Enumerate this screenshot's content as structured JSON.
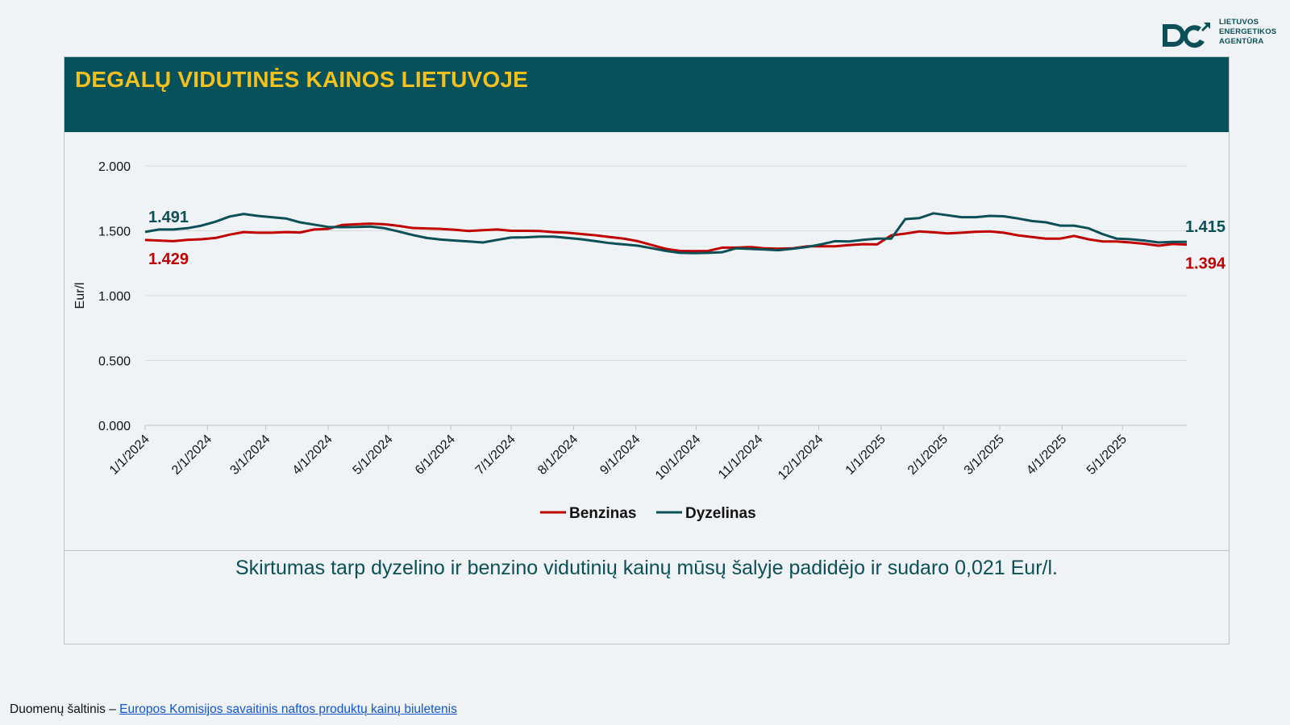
{
  "logo": {
    "line1": "LIETUVOS",
    "line2": "ENERGETIKOS",
    "line3": "AGENTŪRA",
    "color": "#0b4f57"
  },
  "header": {
    "title": "DEGALŲ VIDUTINĖS KAINOS LIETUVOJE",
    "bg_color": "#07525a",
    "title_color": "#f4c01e"
  },
  "note": "Skirtumas tarp dyzelino ir benzino vidutinių kainų mūsų šalyje padidėjo ir sudaro 0,021 Eur/l.",
  "source": {
    "prefix": "Duomenų šaltinis – ",
    "link_text": "Europos Komisijos savaitinis naftos produktų kainų biuletenis"
  },
  "chart_data": {
    "type": "line",
    "ylabel": "Eur/l",
    "xlabel": "",
    "ylim": [
      0,
      2.0
    ],
    "y_ticks": [
      "0.000",
      "0.500",
      "1.000",
      "1.500",
      "2.000"
    ],
    "y_tick_values": [
      0,
      0.5,
      1.0,
      1.5,
      2.0
    ],
    "x_range": [
      "2024-01-01",
      "2025-06-02"
    ],
    "x_ticks": [
      "1/1/2024",
      "2/1/2024",
      "3/1/2024",
      "4/1/2024",
      "5/1/2024",
      "6/1/2024",
      "7/1/2024",
      "8/1/2024",
      "9/1/2024",
      "10/1/2024",
      "11/1/2024",
      "12/1/2024",
      "1/1/2025",
      "2/1/2025",
      "3/1/2025",
      "4/1/2025",
      "5/1/2025"
    ],
    "x_tick_dates": [
      "2024-01-01",
      "2024-02-01",
      "2024-03-01",
      "2024-04-01",
      "2024-05-01",
      "2024-06-01",
      "2024-07-01",
      "2024-08-01",
      "2024-09-01",
      "2024-10-01",
      "2024-11-01",
      "2024-12-01",
      "2025-01-01",
      "2025-02-01",
      "2025-03-01",
      "2025-04-01",
      "2025-05-01"
    ],
    "grid": true,
    "legend_position": "bottom",
    "series": [
      {
        "name": "Benzinas",
        "color": "#c00000",
        "end_label": "1.394",
        "start_label": "1.429",
        "points": [
          [
            "2024-01-01",
            1.429
          ],
          [
            "2024-01-08",
            1.425
          ],
          [
            "2024-01-15",
            1.42
          ],
          [
            "2024-01-22",
            1.43
          ],
          [
            "2024-01-29",
            1.435
          ],
          [
            "2024-02-05",
            1.445
          ],
          [
            "2024-02-12",
            1.47
          ],
          [
            "2024-02-19",
            1.49
          ],
          [
            "2024-02-26",
            1.485
          ],
          [
            "2024-03-04",
            1.485
          ],
          [
            "2024-03-11",
            1.49
          ],
          [
            "2024-03-18",
            1.487
          ],
          [
            "2024-03-25",
            1.51
          ],
          [
            "2024-04-01",
            1.515
          ],
          [
            "2024-04-08",
            1.545
          ],
          [
            "2024-04-15",
            1.55
          ],
          [
            "2024-04-22",
            1.555
          ],
          [
            "2024-04-29",
            1.55
          ],
          [
            "2024-05-06",
            1.538
          ],
          [
            "2024-05-13",
            1.522
          ],
          [
            "2024-05-20",
            1.518
          ],
          [
            "2024-05-27",
            1.515
          ],
          [
            "2024-06-03",
            1.508
          ],
          [
            "2024-06-10",
            1.498
          ],
          [
            "2024-06-17",
            1.505
          ],
          [
            "2024-06-24",
            1.51
          ],
          [
            "2024-07-01",
            1.5
          ],
          [
            "2024-07-08",
            1.5
          ],
          [
            "2024-07-15",
            1.498
          ],
          [
            "2024-07-22",
            1.49
          ],
          [
            "2024-07-29",
            1.485
          ],
          [
            "2024-08-05",
            1.475
          ],
          [
            "2024-08-12",
            1.465
          ],
          [
            "2024-08-19",
            1.452
          ],
          [
            "2024-08-26",
            1.44
          ],
          [
            "2024-09-02",
            1.42
          ],
          [
            "2024-09-09",
            1.39
          ],
          [
            "2024-09-16",
            1.36
          ],
          [
            "2024-09-23",
            1.345
          ],
          [
            "2024-09-30",
            1.343
          ],
          [
            "2024-10-07",
            1.345
          ],
          [
            "2024-10-14",
            1.37
          ],
          [
            "2024-10-21",
            1.37
          ],
          [
            "2024-10-28",
            1.375
          ],
          [
            "2024-11-04",
            1.365
          ],
          [
            "2024-11-11",
            1.362
          ],
          [
            "2024-11-18",
            1.365
          ],
          [
            "2024-11-25",
            1.38
          ],
          [
            "2024-12-02",
            1.38
          ],
          [
            "2024-12-09",
            1.38
          ],
          [
            "2024-12-16",
            1.39
          ],
          [
            "2024-12-23",
            1.397
          ],
          [
            "2024-12-30",
            1.395
          ],
          [
            "2025-01-06",
            1.465
          ],
          [
            "2025-01-13",
            1.478
          ],
          [
            "2025-01-20",
            1.495
          ],
          [
            "2025-01-27",
            1.488
          ],
          [
            "2025-02-03",
            1.48
          ],
          [
            "2025-02-10",
            1.485
          ],
          [
            "2025-02-17",
            1.492
          ],
          [
            "2025-02-24",
            1.495
          ],
          [
            "2025-03-03",
            1.485
          ],
          [
            "2025-03-10",
            1.465
          ],
          [
            "2025-03-17",
            1.452
          ],
          [
            "2025-03-24",
            1.44
          ],
          [
            "2025-03-31",
            1.44
          ],
          [
            "2025-04-07",
            1.46
          ],
          [
            "2025-04-14",
            1.435
          ],
          [
            "2025-04-21",
            1.418
          ],
          [
            "2025-04-28",
            1.418
          ],
          [
            "2025-05-05",
            1.41
          ],
          [
            "2025-05-12",
            1.4
          ],
          [
            "2025-05-19",
            1.385
          ],
          [
            "2025-05-26",
            1.398
          ],
          [
            "2025-06-02",
            1.394
          ]
        ]
      },
      {
        "name": "Dyzelinas",
        "color": "#0b4f57",
        "end_label": "1.415",
        "start_label": "1.491",
        "points": [
          [
            "2024-01-01",
            1.491
          ],
          [
            "2024-01-08",
            1.51
          ],
          [
            "2024-01-15",
            1.51
          ],
          [
            "2024-01-22",
            1.52
          ],
          [
            "2024-01-29",
            1.54
          ],
          [
            "2024-02-05",
            1.57
          ],
          [
            "2024-02-12",
            1.61
          ],
          [
            "2024-02-19",
            1.63
          ],
          [
            "2024-02-26",
            1.615
          ],
          [
            "2024-03-04",
            1.605
          ],
          [
            "2024-03-11",
            1.595
          ],
          [
            "2024-03-18",
            1.565
          ],
          [
            "2024-03-25",
            1.548
          ],
          [
            "2024-04-01",
            1.53
          ],
          [
            "2024-04-08",
            1.528
          ],
          [
            "2024-04-15",
            1.53
          ],
          [
            "2024-04-22",
            1.532
          ],
          [
            "2024-04-29",
            1.52
          ],
          [
            "2024-05-06",
            1.495
          ],
          [
            "2024-05-13",
            1.468
          ],
          [
            "2024-05-20",
            1.445
          ],
          [
            "2024-05-27",
            1.432
          ],
          [
            "2024-06-03",
            1.425
          ],
          [
            "2024-06-10",
            1.418
          ],
          [
            "2024-06-17",
            1.41
          ],
          [
            "2024-06-24",
            1.43
          ],
          [
            "2024-07-01",
            1.448
          ],
          [
            "2024-07-08",
            1.45
          ],
          [
            "2024-07-15",
            1.455
          ],
          [
            "2024-07-22",
            1.455
          ],
          [
            "2024-07-29",
            1.445
          ],
          [
            "2024-08-05",
            1.435
          ],
          [
            "2024-08-12",
            1.42
          ],
          [
            "2024-08-19",
            1.405
          ],
          [
            "2024-08-26",
            1.395
          ],
          [
            "2024-09-02",
            1.385
          ],
          [
            "2024-09-09",
            1.365
          ],
          [
            "2024-09-16",
            1.345
          ],
          [
            "2024-09-23",
            1.33
          ],
          [
            "2024-09-30",
            1.328
          ],
          [
            "2024-10-07",
            1.33
          ],
          [
            "2024-10-14",
            1.335
          ],
          [
            "2024-10-21",
            1.365
          ],
          [
            "2024-10-28",
            1.36
          ],
          [
            "2024-11-04",
            1.355
          ],
          [
            "2024-11-11",
            1.35
          ],
          [
            "2024-11-18",
            1.362
          ],
          [
            "2024-11-25",
            1.375
          ],
          [
            "2024-12-02",
            1.395
          ],
          [
            "2024-12-09",
            1.42
          ],
          [
            "2024-12-16",
            1.418
          ],
          [
            "2024-12-23",
            1.43
          ],
          [
            "2024-12-30",
            1.44
          ],
          [
            "2025-01-06",
            1.44
          ],
          [
            "2025-01-13",
            1.59
          ],
          [
            "2025-01-20",
            1.598
          ],
          [
            "2025-01-27",
            1.635
          ],
          [
            "2025-02-03",
            1.62
          ],
          [
            "2025-02-10",
            1.605
          ],
          [
            "2025-02-17",
            1.605
          ],
          [
            "2025-02-24",
            1.615
          ],
          [
            "2025-03-03",
            1.612
          ],
          [
            "2025-03-10",
            1.595
          ],
          [
            "2025-03-17",
            1.575
          ],
          [
            "2025-03-24",
            1.565
          ],
          [
            "2025-03-31",
            1.54
          ],
          [
            "2025-04-07",
            1.54
          ],
          [
            "2025-04-14",
            1.52
          ],
          [
            "2025-04-21",
            1.475
          ],
          [
            "2025-04-28",
            1.44
          ],
          [
            "2025-05-05",
            1.435
          ],
          [
            "2025-05-12",
            1.425
          ],
          [
            "2025-05-19",
            1.41
          ],
          [
            "2025-05-26",
            1.415
          ],
          [
            "2025-06-02",
            1.415
          ]
        ]
      }
    ]
  }
}
